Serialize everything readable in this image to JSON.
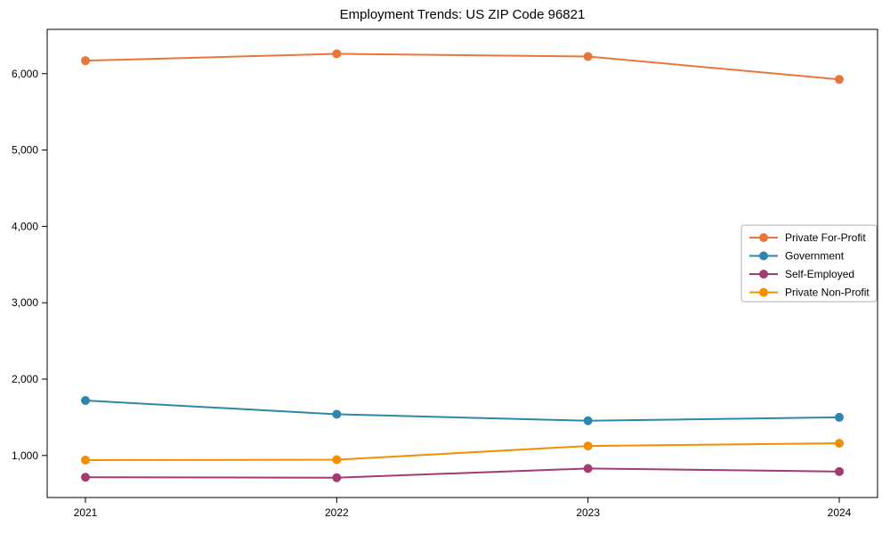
{
  "chart_data": {
    "type": "line",
    "title": "Employment Trends: US ZIP Code 96821",
    "x": [
      2021,
      2022,
      2023,
      2024
    ],
    "x_tick_labels": [
      "2021",
      "2022",
      "2023",
      "2024"
    ],
    "xlabel": "",
    "ylabel": "",
    "ylim": [
      450,
      6580
    ],
    "grid": false,
    "background": "#ffffff",
    "axis_color": "#000000",
    "text_color": "#000000",
    "y_ticks": [
      {
        "value": 1000,
        "label": "1,000"
      },
      {
        "value": 2000,
        "label": "2,000"
      },
      {
        "value": 3000,
        "label": "3,000"
      },
      {
        "value": 4000,
        "label": "4,000"
      },
      {
        "value": 5000,
        "label": "5,000"
      },
      {
        "value": 6000,
        "label": "6,000"
      }
    ],
    "series": [
      {
        "name": "Private For-Profit",
        "color": "#E8763B",
        "values": [
          6170,
          6260,
          6225,
          5925
        ]
      },
      {
        "name": "Government",
        "color": "#2E86AB",
        "values": [
          1720,
          1540,
          1455,
          1500
        ]
      },
      {
        "name": "Self-Employed",
        "color": "#A23B72",
        "values": [
          715,
          710,
          830,
          790
        ]
      },
      {
        "name": "Private Non-Profit",
        "color": "#F18F01",
        "values": [
          940,
          945,
          1125,
          1160
        ]
      }
    ],
    "legend": {
      "position": "center-right",
      "background": "#ffffff",
      "border_color": "#b0b0b0",
      "entries": [
        "Private For-Profit",
        "Government",
        "Self-Employed",
        "Private Non-Profit"
      ]
    }
  }
}
